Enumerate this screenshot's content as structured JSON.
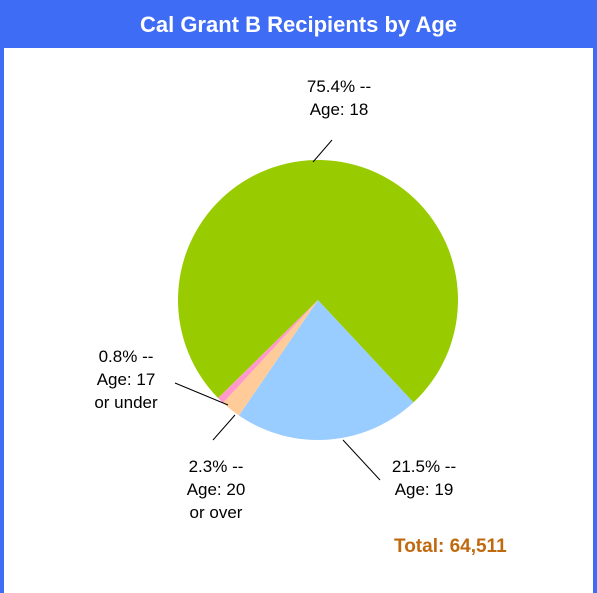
{
  "chart_data": {
    "type": "pie",
    "title": "Cal Grant B Recipients by Age",
    "categories": [
      "Age: 19",
      "Age: 20 or over",
      "Age: 17 or under",
      "Age: 18"
    ],
    "values": [
      21.5,
      2.3,
      0.8,
      75.4
    ],
    "value_labels": [
      "21.5% --",
      "2.3% --",
      "0.8% --",
      "75.4% --"
    ],
    "colors": [
      "#99ccff",
      "#ffcc99",
      "#ff99cc",
      "#99cc00"
    ],
    "total": "Total: 64,511"
  }
}
